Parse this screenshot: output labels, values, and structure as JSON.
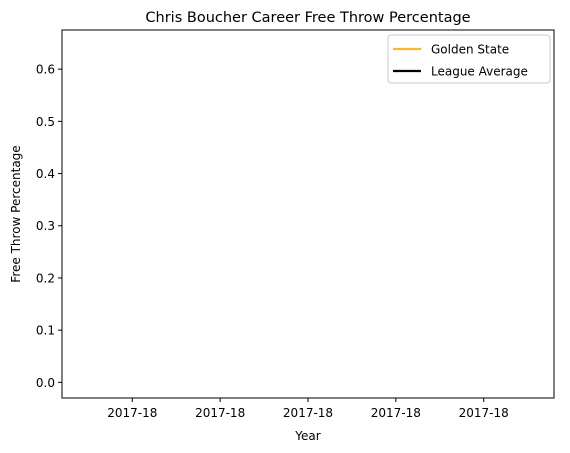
{
  "chart_data": {
    "type": "line",
    "title": "Chris Boucher  Career Free Throw Percentage",
    "xlabel": "Year",
    "ylabel": "Free Throw Percentage",
    "x_tick_labels": [
      "2017-18",
      "2017-18",
      "2017-18",
      "2017-18",
      "2017-18"
    ],
    "y_ticks": [
      0.0,
      0.1,
      0.2,
      0.3,
      0.4,
      0.5,
      0.6
    ],
    "y_tick_labels": [
      "0.0",
      "0.1",
      "0.2",
      "0.3",
      "0.4",
      "0.5",
      "0.6"
    ],
    "ylim": [
      -0.03,
      0.675
    ],
    "grid": false,
    "legend_position": "top-right",
    "series": [
      {
        "name": "Golden State",
        "color": "#fdb927",
        "x": [
          "2017-18"
        ],
        "values": [
          null
        ]
      },
      {
        "name": "League Average",
        "color": "#000000",
        "x": [
          "2017-18"
        ],
        "values": [
          null
        ]
      }
    ]
  }
}
